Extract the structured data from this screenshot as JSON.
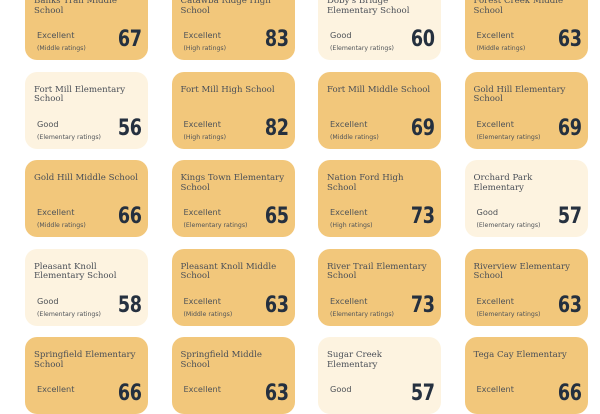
{
  "colors": {
    "excellent": "#f2c77b",
    "good": "#fdf3e0",
    "score": "#25303f"
  },
  "schools": [
    {
      "name": "Banks Trail Middle School",
      "rating": "Excellent",
      "type": "(Middle ratings)",
      "score": "67"
    },
    {
      "name": "Catawba Ridge High School",
      "rating": "Excellent",
      "type": "(High ratings)",
      "score": "83"
    },
    {
      "name": "Doby's Bridge Elementary School",
      "rating": "Good",
      "type": "(Elementary ratings)",
      "score": "60"
    },
    {
      "name": "Forest Creek Middle School",
      "rating": "Excellent",
      "type": "(Middle ratings)",
      "score": "63"
    },
    {
      "name": "Fort Mill Elementary School",
      "rating": "Good",
      "type": "(Elementary ratings)",
      "score": "56"
    },
    {
      "name": "Fort Mill High School",
      "rating": "Excellent",
      "type": "(High ratings)",
      "score": "82"
    },
    {
      "name": "Fort Mill Middle School",
      "rating": "Excellent",
      "type": "(Middle ratings)",
      "score": "69"
    },
    {
      "name": "Gold Hill Elementary School",
      "rating": "Excellent",
      "type": "(Elementary ratings)",
      "score": "69"
    },
    {
      "name": "Gold Hill Middle School",
      "rating": "Excellent",
      "type": "(Middle ratings)",
      "score": "66"
    },
    {
      "name": "Kings Town Elementary School",
      "rating": "Excellent",
      "type": "(Elementary ratings)",
      "score": "65"
    },
    {
      "name": "Nation Ford High School",
      "rating": "Excellent",
      "type": "(High ratings)",
      "score": "73"
    },
    {
      "name": "Orchard Park Elementary",
      "rating": "Good",
      "type": "(Elementary ratings)",
      "score": "57"
    },
    {
      "name": "Pleasant Knoll Elementary School",
      "rating": "Good",
      "type": "(Elementary ratings)",
      "score": "58"
    },
    {
      "name": "Pleasant Knoll Middle School",
      "rating": "Excellent",
      "type": "(Middle ratings)",
      "score": "63"
    },
    {
      "name": "River Trail Elementary School",
      "rating": "Excellent",
      "type": "(Elementary ratings)",
      "score": "73"
    },
    {
      "name": "Riverview Elementary School",
      "rating": "Excellent",
      "type": "(Elementary ratings)",
      "score": "63"
    },
    {
      "name": "Springfield Elementary School",
      "rating": "Excellent",
      "type": "",
      "score": "66"
    },
    {
      "name": "Springfield Middle School",
      "rating": "Excellent",
      "type": "",
      "score": "63"
    },
    {
      "name": "Sugar Creek Elementary",
      "rating": "Good",
      "type": "",
      "score": "57"
    },
    {
      "name": "Tega Cay Elementary",
      "rating": "Excellent",
      "type": "",
      "score": "66"
    }
  ]
}
